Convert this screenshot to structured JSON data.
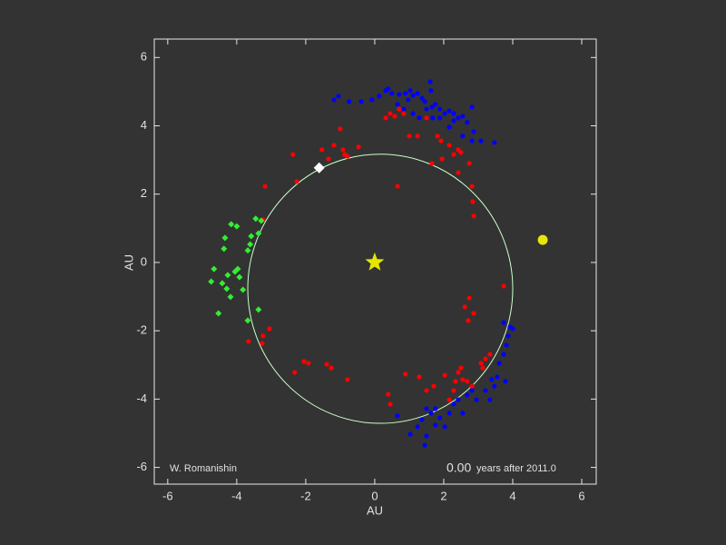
{
  "chart_data": {
    "type": "scatter",
    "xlabel": "AU",
    "ylabel": "AU",
    "xlim": [
      -6.39,
      6.42
    ],
    "ylim": [
      -6.49,
      6.54
    ],
    "xticks": [
      -6,
      -4,
      -2,
      0,
      2,
      4,
      6
    ],
    "yticks": [
      -6,
      -4,
      -2,
      0,
      2,
      4,
      6
    ],
    "credit": "W. Romanishin",
    "time_value": "0.00",
    "time_unit": "years after 2011.0",
    "orbit": {
      "cx": 0.16,
      "cy": -0.77,
      "rx": 3.84,
      "ry": 3.94,
      "color": "#ccffcc"
    },
    "series": [
      {
        "color": "#0000ff",
        "marker": "circle",
        "x": [
          -1.18,
          -1.05,
          -0.74,
          -0.39,
          -0.08,
          0.13,
          0.32,
          0.39,
          0.5,
          0.71,
          0.89,
          1.03,
          1.11,
          1.24,
          1.37,
          1.45,
          1.61,
          1.66,
          1.5,
          1.76,
          1.89,
          2.03,
          2.16,
          2.29,
          2.42,
          2.55,
          2.68,
          2.82,
          2.87,
          3.08,
          3.47,
          0.45,
          0.84,
          1.11,
          1.29,
          1.68,
          1.89,
          2.16,
          2.29,
          2.55,
          2.82,
          1.63,
          0.97,
          0.66,
          0.66,
          1.03,
          1.24,
          1.37,
          1.5,
          1.63,
          1.76,
          1.89,
          2.03,
          2.16,
          2.29,
          2.42,
          2.55,
          2.68,
          2.82,
          2.95,
          3.21,
          3.34,
          3.47,
          3.55,
          3.61,
          3.74,
          3.82,
          3.87,
          3.92,
          4.0,
          3.74,
          3.79,
          3.39,
          1.5,
          1.45,
          1.76
        ],
        "values": [
          4.76,
          4.87,
          4.71,
          4.71,
          4.76,
          4.87,
          5.03,
          5.08,
          4.95,
          4.92,
          4.95,
          5.03,
          4.89,
          4.95,
          4.81,
          4.71,
          5.29,
          4.55,
          4.49,
          4.63,
          4.49,
          4.36,
          4.44,
          4.36,
          4.23,
          4.28,
          4.1,
          4.55,
          3.83,
          3.56,
          3.51,
          4.36,
          4.49,
          4.36,
          4.23,
          4.23,
          4.23,
          3.96,
          4.15,
          3.7,
          3.56,
          5.03,
          4.76,
          4.63,
          -4.49,
          -5.03,
          -4.81,
          -4.6,
          -5.08,
          -4.41,
          -4.76,
          -4.55,
          -4.81,
          -4.41,
          -4.15,
          -4.02,
          -4.41,
          -3.88,
          -3.75,
          -4.02,
          -3.75,
          -4.02,
          -3.62,
          -3.35,
          -2.95,
          -2.69,
          -2.42,
          -2.15,
          -1.89,
          -1.94,
          -1.76,
          -3.48,
          -3.43,
          -4.28,
          -5.35,
          -4.28
        ]
      },
      {
        "color": "#ff0000",
        "marker": "circle",
        "x": [
          -2.37,
          -1.53,
          -1.34,
          -1.18,
          -1.0,
          -0.92,
          -0.87,
          -0.47,
          0.32,
          0.45,
          0.58,
          0.71,
          0.84,
          1.0,
          1.24,
          1.5,
          1.82,
          1.92,
          2.16,
          2.29,
          2.42,
          2.5,
          2.74,
          2.42,
          1.95,
          1.66,
          2.82,
          2.84,
          2.87,
          -0.79,
          -2.26,
          -3.18,
          -3.24,
          0.66,
          2.74,
          2.61,
          2.87,
          2.71,
          3.74,
          -3.05,
          -3.24,
          -3.66,
          -3.26,
          -2.32,
          -2.05,
          -1.92,
          -1.39,
          -1.26,
          -0.79,
          0.39,
          0.45,
          0.89,
          1.29,
          1.5,
          1.71,
          2.03,
          2.16,
          2.29,
          2.34,
          2.42,
          2.55,
          2.68,
          2.82,
          3.08,
          3.21,
          3.34,
          3.13,
          2.5
        ],
        "values": [
          3.16,
          3.3,
          3.03,
          3.43,
          3.91,
          3.3,
          3.16,
          3.38,
          4.23,
          4.36,
          4.28,
          4.49,
          4.36,
          3.7,
          3.7,
          4.23,
          3.7,
          3.56,
          3.43,
          3.16,
          3.3,
          3.22,
          2.9,
          2.63,
          3.03,
          2.9,
          2.23,
          1.78,
          1.36,
          3.11,
          2.37,
          2.23,
          1.25,
          2.23,
          -1.04,
          -1.3,
          -1.49,
          -1.7,
          -0.69,
          -1.94,
          -2.15,
          -2.31,
          -2.37,
          -3.22,
          -2.9,
          -2.95,
          -2.98,
          -3.09,
          -3.43,
          -3.86,
          -4.15,
          -3.27,
          -3.35,
          -3.75,
          -3.62,
          -3.3,
          -4.02,
          -3.75,
          -3.48,
          -3.22,
          -3.43,
          -3.48,
          -3.62,
          -2.95,
          -2.82,
          -2.69,
          -3.09,
          -3.09
        ]
      },
      {
        "color": "#33ee33",
        "marker": "diamond",
        "x": [
          -4.16,
          -4.0,
          -3.45,
          -3.29,
          -4.34,
          -4.37,
          -3.58,
          -3.68,
          -3.61,
          -3.37,
          -4.66,
          -4.74,
          -4.42,
          -4.29,
          -4.26,
          -4.05,
          -3.97,
          -3.92,
          -3.82,
          -4.18,
          -4.53,
          -3.68,
          -3.37
        ],
        "values": [
          1.12,
          1.06,
          1.28,
          1.22,
          0.72,
          0.4,
          0.77,
          0.35,
          0.53,
          0.85,
          -0.19,
          -0.56,
          -0.61,
          -0.77,
          -0.37,
          -0.27,
          -0.19,
          -0.43,
          -0.8,
          -1.01,
          -1.49,
          -1.7,
          -1.38
        ]
      },
      {
        "color": "#ffffff",
        "marker": "big-diamond",
        "x": [
          -1.61
        ],
        "values": [
          2.77
        ]
      },
      {
        "color": "#e6e600",
        "marker": "star",
        "x": [
          0
        ],
        "values": [
          0
        ]
      },
      {
        "color": "#e6e600",
        "marker": "big-circle",
        "x": [
          4.87
        ],
        "values": [
          0.66
        ]
      }
    ]
  }
}
